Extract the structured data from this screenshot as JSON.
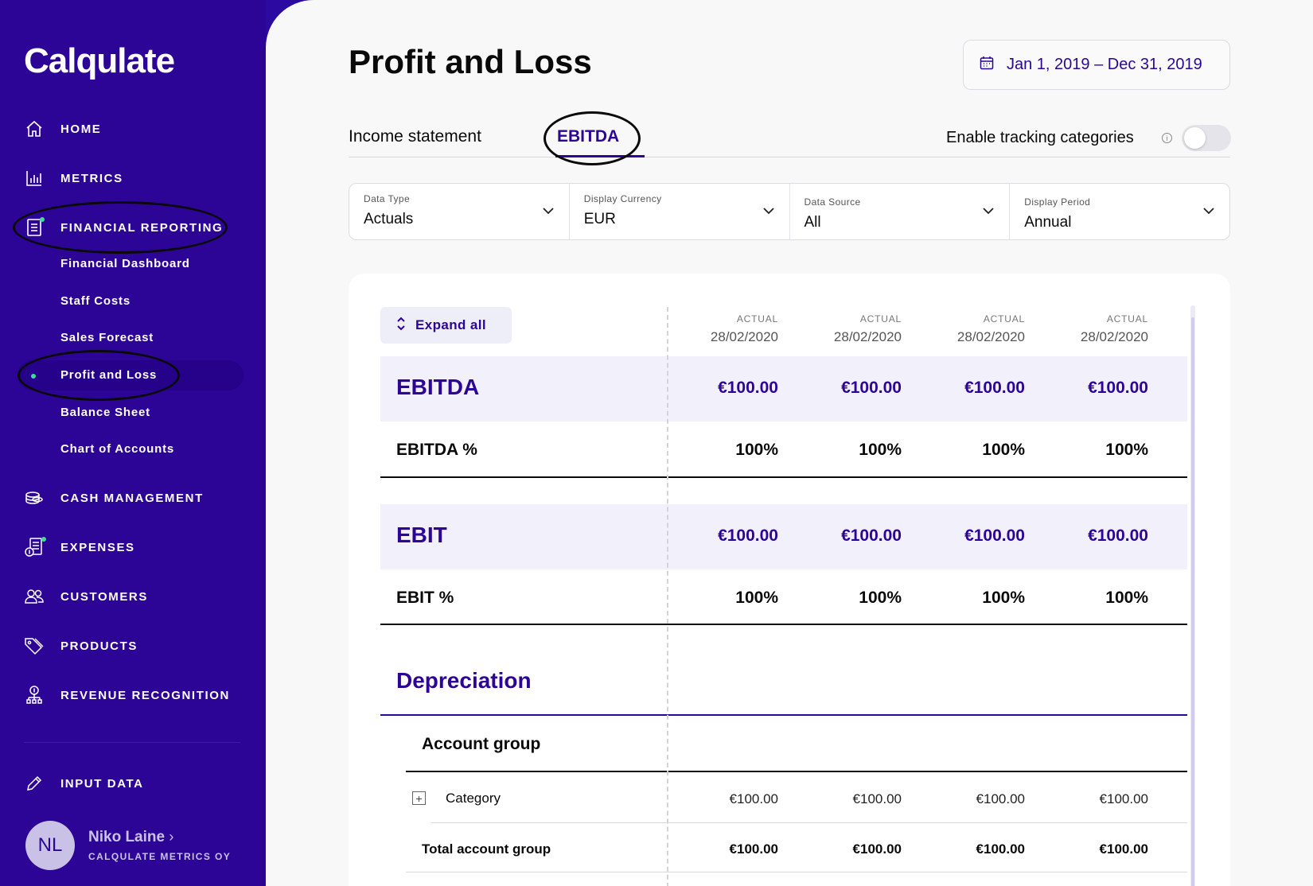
{
  "app": {
    "logo": "Calqulate"
  },
  "sidebar": {
    "items": [
      {
        "label": "HOME",
        "icon": "home-icon"
      },
      {
        "label": "METRICS",
        "icon": "bar-chart-icon"
      },
      {
        "label": "FINANCIAL REPORTING",
        "icon": "report-icon"
      },
      {
        "label": "CASH MANAGEMENT",
        "icon": "coins-icon"
      },
      {
        "label": "EXPENSES",
        "icon": "receipt-icon"
      },
      {
        "label": "CUSTOMERS",
        "icon": "users-icon"
      },
      {
        "label": "PRODUCTS",
        "icon": "tag-icon"
      },
      {
        "label": "REVENUE RECOGNITION",
        "icon": "revenue-icon"
      },
      {
        "label": "INPUT DATA",
        "icon": "pencil-icon"
      }
    ],
    "sub_items": [
      "Financial Dashboard",
      "Staff Costs",
      "Sales Forecast",
      "Profit and Loss",
      "Balance Sheet",
      "Chart of Accounts"
    ],
    "user": {
      "initials": "NL",
      "name": "Niko Laine",
      "company": "CALQULATE METRICS OY"
    }
  },
  "header": {
    "title": "Profit and Loss",
    "date_range": "Jan 1, 2019 – Dec 31, 2019"
  },
  "tabs": [
    {
      "label": "Income statement"
    },
    {
      "label": "EBITDA"
    }
  ],
  "tracking": {
    "label": "Enable tracking categories",
    "enabled": false
  },
  "filters": [
    {
      "label": "Data Type",
      "value": "Actuals"
    },
    {
      "label": "Display Currency",
      "value": "EUR"
    },
    {
      "label": "Data Source",
      "value": "All"
    },
    {
      "label": "Display Period",
      "value": "Annual"
    }
  ],
  "table": {
    "expand_label": "Expand all",
    "columns": [
      {
        "kind": "ACTUAL",
        "date": "28/02/2020"
      },
      {
        "kind": "ACTUAL",
        "date": "28/02/2020"
      },
      {
        "kind": "ACTUAL",
        "date": "28/02/2020"
      },
      {
        "kind": "ACTUAL",
        "date": "28/02/2020"
      }
    ],
    "ebitda": {
      "label": "EBITDA",
      "values": [
        "€100.00",
        "€100.00",
        "€100.00",
        "€100.00"
      ]
    },
    "ebitda_pct": {
      "label": "EBITDA %",
      "values": [
        "100%",
        "100%",
        "100%",
        "100%"
      ]
    },
    "ebit": {
      "label": "EBIT",
      "values": [
        "€100.00",
        "€100.00",
        "€100.00",
        "€100.00"
      ]
    },
    "ebit_pct": {
      "label": "EBIT %",
      "values": [
        "100%",
        "100%",
        "100%",
        "100%"
      ]
    },
    "depreciation": {
      "label": "Depreciation"
    },
    "account_group": {
      "label": "Account group"
    },
    "category": {
      "label": "Category",
      "values": [
        "€100.00",
        "€100.00",
        "€100.00",
        "€100.00"
      ]
    },
    "total_account_group": {
      "label": "Total account group",
      "values": [
        "€100.00",
        "€100.00",
        "€100.00",
        "€100.00"
      ]
    }
  }
}
